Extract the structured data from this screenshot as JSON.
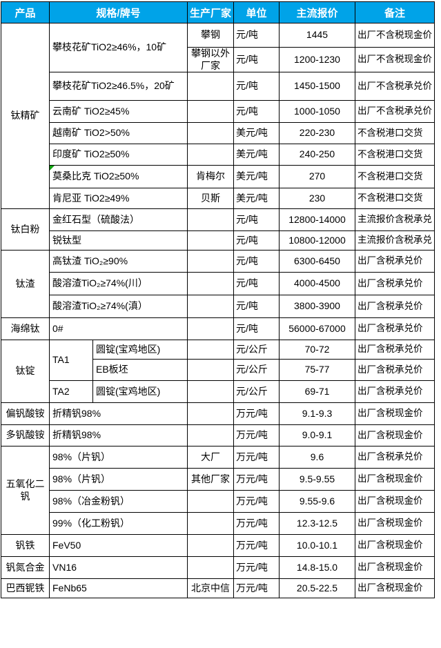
{
  "colors": {
    "header_bg": "#00A3E8",
    "header_text": "#FFFFFF",
    "grid_line": "#000000",
    "flag_green": "#12A312"
  },
  "icons": {
    "cell_flag": "error-flag-triangle-icon"
  },
  "table": {
    "header": {
      "h": 31,
      "cells": [
        {
          "t": "产品",
          "kind": "product"
        },
        {
          "t": "规格/牌号",
          "kind": "spec",
          "c": 2
        },
        {
          "t": "生产厂家",
          "kind": "producer"
        },
        {
          "t": "单位",
          "kind": "unit"
        },
        {
          "t": "主流报价",
          "kind": "price"
        },
        {
          "t": "备注",
          "kind": "remark"
        }
      ]
    },
    "rows": [
      {
        "h": 35,
        "cells": [
          {
            "t": "钛精矿",
            "kind": "product",
            "r": 8
          },
          {
            "t": "攀枝花矿TiO2≥46%，10矿",
            "kind": "spec",
            "c": 2,
            "r": 2
          },
          {
            "t": "攀钢",
            "kind": "producer"
          },
          {
            "t": "元/吨",
            "kind": "unit"
          },
          {
            "t": "1445",
            "kind": "price"
          },
          {
            "t": "出厂不含税现金价",
            "kind": "remark"
          }
        ]
      },
      {
        "h": 34,
        "cells": [
          {
            "t": "攀钢以外厂家",
            "kind": "producer"
          },
          {
            "t": "元/吨",
            "kind": "unit"
          },
          {
            "t": "1200-1230",
            "kind": "price"
          },
          {
            "t": "出厂不含税现金价",
            "kind": "remark"
          }
        ]
      },
      {
        "h": 41,
        "cells": [
          {
            "t": "攀枝花矿TiO2≥46.5%，20矿",
            "kind": "spec",
            "c": 2
          },
          {
            "t": "",
            "kind": "producer"
          },
          {
            "t": "元/吨",
            "kind": "unit"
          },
          {
            "t": "1450-1500",
            "kind": "price"
          },
          {
            "t": "出厂不含税承兑价",
            "kind": "remark"
          }
        ]
      },
      {
        "h": 32,
        "cells": [
          {
            "t": "云南矿 TiO2≥45%",
            "kind": "spec",
            "c": 2
          },
          {
            "t": "",
            "kind": "producer"
          },
          {
            "t": "元/吨",
            "kind": "unit"
          },
          {
            "t": "1000-1050",
            "kind": "price"
          },
          {
            "t": "出厂不含税承兑价",
            "kind": "remark"
          }
        ]
      },
      {
        "h": 31,
        "cells": [
          {
            "t": "越南矿 TiO2>50%",
            "kind": "spec",
            "c": 2
          },
          {
            "t": "",
            "kind": "producer"
          },
          {
            "t": "美元/吨",
            "kind": "unit"
          },
          {
            "t": "220-230",
            "kind": "price"
          },
          {
            "t": "不含税港口交货",
            "kind": "remark"
          }
        ]
      },
      {
        "h": 31,
        "cells": [
          {
            "t": "印度矿 TiO2≥50%",
            "kind": "spec",
            "c": 2
          },
          {
            "t": "",
            "kind": "producer"
          },
          {
            "t": "美元/吨",
            "kind": "unit"
          },
          {
            "t": "240-250",
            "kind": "price"
          },
          {
            "t": "不含税港口交货",
            "kind": "remark"
          }
        ]
      },
      {
        "h": 33,
        "cells": [
          {
            "t": "莫桑比克 TiO2≥50%",
            "kind": "spec",
            "c": 2,
            "marker": true
          },
          {
            "t": "肯梅尔",
            "kind": "producer"
          },
          {
            "t": "美元/吨",
            "kind": "unit"
          },
          {
            "t": "270",
            "kind": "price"
          },
          {
            "t": "不含税港口交货",
            "kind": "remark"
          }
        ]
      },
      {
        "h": 30,
        "cells": [
          {
            "t": "肯尼亚 TiO2≥49%",
            "kind": "spec",
            "c": 2
          },
          {
            "t": "贝斯",
            "kind": "producer"
          },
          {
            "t": "美元/吨",
            "kind": "unit"
          },
          {
            "t": "230",
            "kind": "price"
          },
          {
            "t": "不含税港口交货",
            "kind": "remark"
          }
        ]
      },
      {
        "h": 32,
        "cells": [
          {
            "t": "钛白粉",
            "kind": "product",
            "r": 2
          },
          {
            "t": "金红石型（硫酸法）",
            "kind": "spec",
            "c": 2
          },
          {
            "t": "",
            "kind": "producer"
          },
          {
            "t": "元/吨",
            "kind": "unit"
          },
          {
            "t": "12800-14000",
            "kind": "price"
          },
          {
            "t": "主流报价含税承兑",
            "kind": "remark"
          }
        ]
      },
      {
        "h": 28,
        "cells": [
          {
            "t": "锐钛型",
            "kind": "spec",
            "c": 2
          },
          {
            "t": "",
            "kind": "producer"
          },
          {
            "t": "元/吨",
            "kind": "unit"
          },
          {
            "t": "10800-12000",
            "kind": "price"
          },
          {
            "t": "主流报价含税承兑",
            "kind": "remark"
          }
        ]
      },
      {
        "h": 32,
        "cells": [
          {
            "t": "钛渣",
            "kind": "product",
            "r": 3
          },
          {
            "t": "高钛渣 TiO₂≥90%",
            "kind": "spec",
            "c": 2
          },
          {
            "t": "",
            "kind": "producer"
          },
          {
            "t": "元/吨",
            "kind": "unit"
          },
          {
            "t": "6300-6450",
            "kind": "price"
          },
          {
            "t": "出厂含税承兑价",
            "kind": "remark"
          }
        ]
      },
      {
        "h": 33,
        "cells": [
          {
            "t": "酸溶渣TiO₂≥74%(川）",
            "kind": "spec",
            "c": 2
          },
          {
            "t": "",
            "kind": "producer"
          },
          {
            "t": "元/吨",
            "kind": "unit"
          },
          {
            "t": "4000-4500",
            "kind": "price"
          },
          {
            "t": "出厂含税承兑价",
            "kind": "remark"
          }
        ]
      },
      {
        "h": 33,
        "cells": [
          {
            "t": "酸溶渣TiO₂≥74%(滇）",
            "kind": "spec",
            "c": 2
          },
          {
            "t": "",
            "kind": "producer"
          },
          {
            "t": "元/吨",
            "kind": "unit"
          },
          {
            "t": "3800-3900",
            "kind": "price"
          },
          {
            "t": "出厂含税承兑价",
            "kind": "remark"
          }
        ]
      },
      {
        "h": 32,
        "cells": [
          {
            "t": "海绵钛",
            "kind": "product"
          },
          {
            "t": "0#",
            "kind": "spec",
            "c": 2
          },
          {
            "t": "",
            "kind": "producer"
          },
          {
            "t": "元/吨",
            "kind": "unit"
          },
          {
            "t": "56000-67000",
            "kind": "price"
          },
          {
            "t": "出厂含税承兑价",
            "kind": "remark"
          }
        ]
      },
      {
        "h": 28,
        "cells": [
          {
            "t": "钛锭",
            "kind": "product",
            "r": 3
          },
          {
            "t": "TA1",
            "kind": "spec-grade",
            "r": 2
          },
          {
            "t": "圆锭(宝鸡地区)",
            "kind": "spec-type"
          },
          {
            "t": "",
            "kind": "producer"
          },
          {
            "t": "元/公斤",
            "kind": "unit"
          },
          {
            "t": "70-72",
            "kind": "price"
          },
          {
            "t": "出厂含税承兑价",
            "kind": "remark"
          }
        ]
      },
      {
        "h": 31,
        "cells": [
          {
            "t": "EB板坯",
            "kind": "spec-type"
          },
          {
            "t": "",
            "kind": "producer"
          },
          {
            "t": "元/公斤",
            "kind": "unit"
          },
          {
            "t": "75-77",
            "kind": "price"
          },
          {
            "t": "出厂含税承兑价",
            "kind": "remark"
          }
        ]
      },
      {
        "h": 32,
        "cells": [
          {
            "t": "TA2",
            "kind": "spec-grade"
          },
          {
            "t": "圆锭(宝鸡地区)",
            "kind": "spec-type"
          },
          {
            "t": "",
            "kind": "producer"
          },
          {
            "t": "元/公斤",
            "kind": "unit"
          },
          {
            "t": "69-71",
            "kind": "price"
          },
          {
            "t": "出厂含税承兑价",
            "kind": "remark"
          }
        ]
      },
      {
        "h": 32,
        "cells": [
          {
            "t": "偏钒酸铵",
            "kind": "product"
          },
          {
            "t": "折精钒98%",
            "kind": "spec",
            "c": 2
          },
          {
            "t": "",
            "kind": "producer"
          },
          {
            "t": "万元/吨",
            "kind": "unit"
          },
          {
            "t": "9.1-9.3",
            "kind": "price"
          },
          {
            "t": "出厂含税现金价",
            "kind": "remark"
          }
        ]
      },
      {
        "h": 31,
        "cells": [
          {
            "t": "多钒酸铵",
            "kind": "product"
          },
          {
            "t": "折精钒98%",
            "kind": "spec",
            "c": 2
          },
          {
            "t": "",
            "kind": "producer"
          },
          {
            "t": "万元/吨",
            "kind": "unit"
          },
          {
            "t": "9.0-9.1",
            "kind": "price"
          },
          {
            "t": "出厂含税现金价",
            "kind": "remark"
          }
        ]
      },
      {
        "h": 32,
        "cells": [
          {
            "t": "五氧化二钒",
            "kind": "product",
            "r": 4
          },
          {
            "t": "98%（片钒）",
            "kind": "spec",
            "c": 2
          },
          {
            "t": "大厂",
            "kind": "producer"
          },
          {
            "t": "万元/吨",
            "kind": "unit"
          },
          {
            "t": "9.6",
            "kind": "price"
          },
          {
            "t": "出厂含税承兑价",
            "kind": "remark"
          }
        ]
      },
      {
        "h": 32,
        "cells": [
          {
            "t": "98%（片钒）",
            "kind": "spec",
            "c": 2
          },
          {
            "t": "其他厂家",
            "kind": "producer"
          },
          {
            "t": "万元/吨",
            "kind": "unit"
          },
          {
            "t": "9.5-9.55",
            "kind": "price"
          },
          {
            "t": "出厂含税现金价",
            "kind": "remark"
          }
        ]
      },
      {
        "h": 32,
        "cells": [
          {
            "t": "98%（冶金粉钒）",
            "kind": "spec",
            "c": 2
          },
          {
            "t": "",
            "kind": "producer"
          },
          {
            "t": "万元/吨",
            "kind": "unit"
          },
          {
            "t": "9.55-9.6",
            "kind": "price"
          },
          {
            "t": "出厂含税现金价",
            "kind": "remark"
          }
        ]
      },
      {
        "h": 32,
        "cells": [
          {
            "t": "99%（化工粉钒）",
            "kind": "spec",
            "c": 2
          },
          {
            "t": "",
            "kind": "producer"
          },
          {
            "t": "万元/吨",
            "kind": "unit"
          },
          {
            "t": "12.3-12.5",
            "kind": "price"
          },
          {
            "t": "出厂含税现金价",
            "kind": "remark"
          }
        ]
      },
      {
        "h": 32,
        "cells": [
          {
            "t": "钒铁",
            "kind": "product"
          },
          {
            "t": "FeV50",
            "kind": "spec",
            "c": 2
          },
          {
            "t": "",
            "kind": "producer"
          },
          {
            "t": "万元/吨",
            "kind": "unit"
          },
          {
            "t": "10.0-10.1",
            "kind": "price"
          },
          {
            "t": "出厂含税现金价",
            "kind": "remark"
          }
        ]
      },
      {
        "h": 32,
        "cells": [
          {
            "t": "钒氮合金",
            "kind": "product"
          },
          {
            "t": "VN16",
            "kind": "spec",
            "c": 2
          },
          {
            "t": "",
            "kind": "producer"
          },
          {
            "t": "万元/吨",
            "kind": "unit"
          },
          {
            "t": "14.8-15.0",
            "kind": "price"
          },
          {
            "t": "出厂含税现金价",
            "kind": "remark"
          }
        ]
      },
      {
        "h": 28,
        "cells": [
          {
            "t": "巴西铌铁",
            "kind": "product"
          },
          {
            "t": "FeNb65",
            "kind": "spec",
            "c": 2
          },
          {
            "t": "北京中信",
            "kind": "producer"
          },
          {
            "t": "万元/吨",
            "kind": "unit"
          },
          {
            "t": "20.5-22.5",
            "kind": "price"
          },
          {
            "t": "出厂含税现金价",
            "kind": "remark"
          }
        ]
      }
    ]
  }
}
